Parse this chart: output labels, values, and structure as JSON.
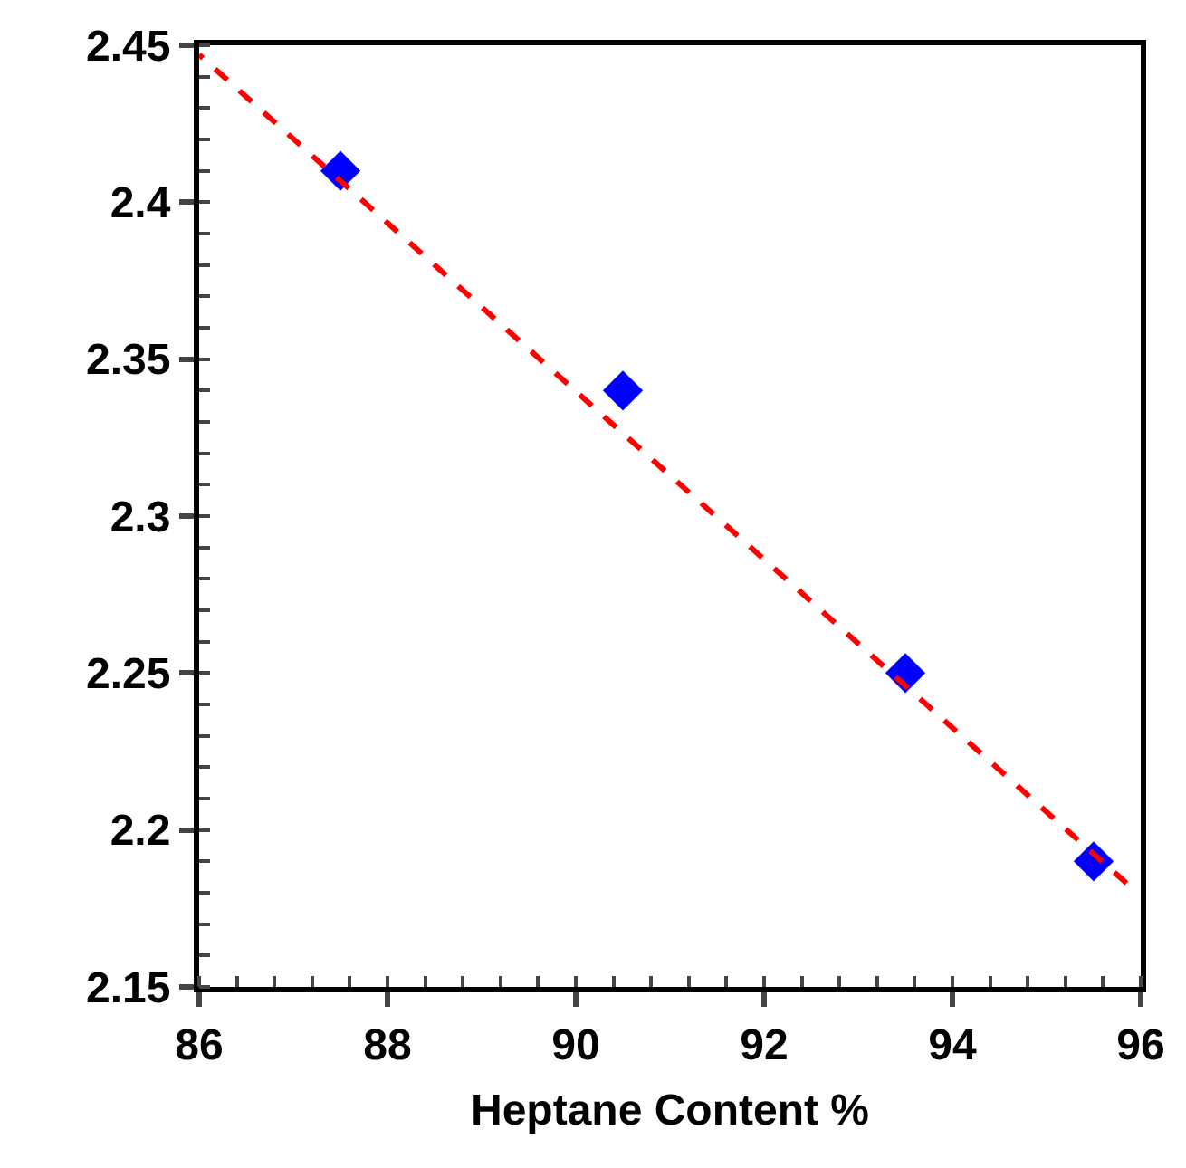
{
  "chart_data": {
    "type": "scatter",
    "xlabel": "Heptane Content %",
    "line_style": "dashed",
    "legend": false,
    "xlim": [
      86,
      96
    ],
    "xticks": [
      86,
      88,
      90,
      92,
      94,
      96
    ],
    "ylim": [
      2.15,
      2.45
    ],
    "yticks": [
      2.15,
      2.2,
      2.25,
      2.3,
      2.35,
      2.4,
      2.45
    ],
    "series": [
      {
        "marker": "diamond",
        "color": "#0000ff",
        "x": [
          87.5,
          90.5,
          93.5,
          95.5
        ],
        "values": [
          2.41,
          2.34,
          2.25,
          2.19
        ]
      },
      {
        "type": "line",
        "marker": "none",
        "color": "#ff0000",
        "x": [
          95.85,
          86
        ],
        "values": [
          2.183,
          2.447
        ]
      }
    ]
  }
}
